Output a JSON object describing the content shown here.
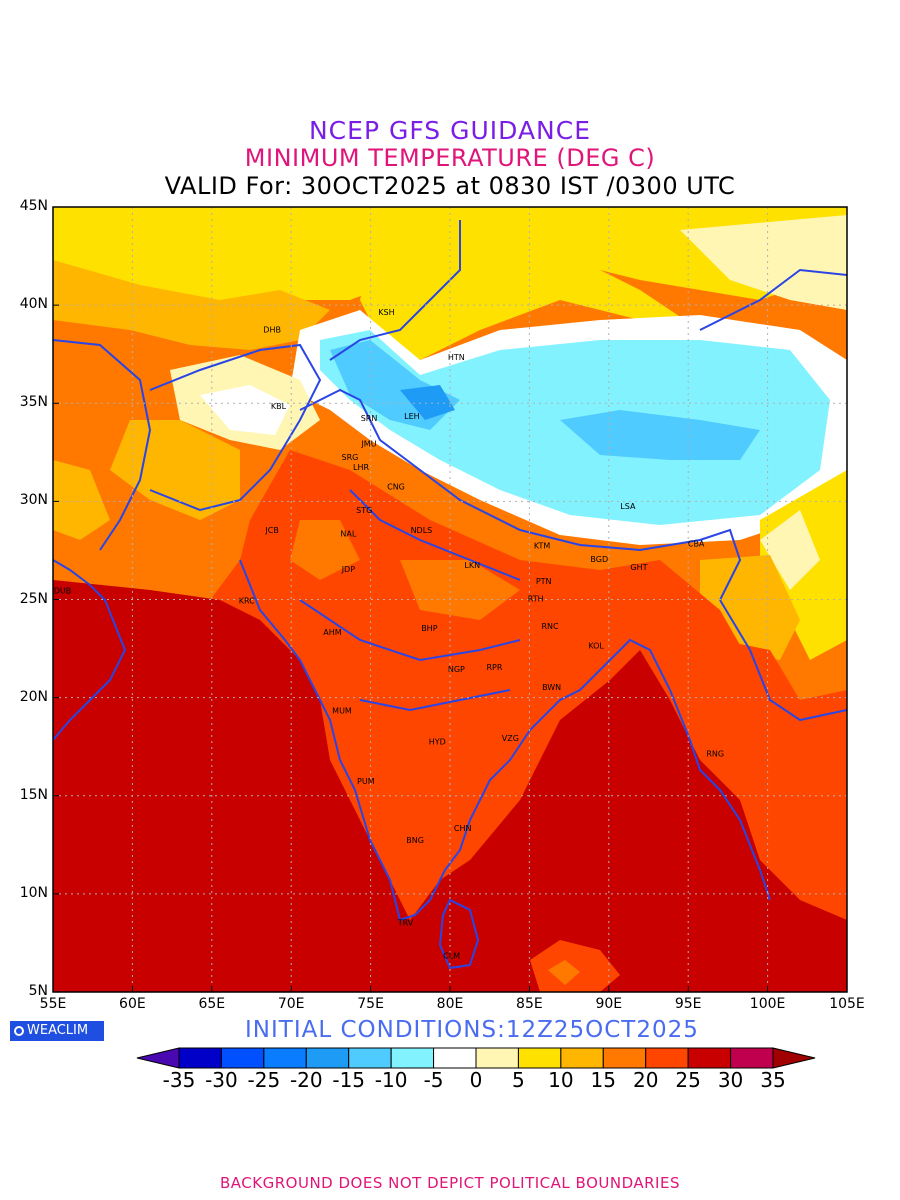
{
  "title": {
    "line1": "NCEP GFS GUIDANCE",
    "line2": "MINIMUM TEMPERATURE (DEG C)",
    "line3": "VALID For: 30OCT2025 at 0830 IST /0300 UTC"
  },
  "map": {
    "lat_labels": [
      "45N",
      "40N",
      "35N",
      "30N",
      "25N",
      "20N",
      "15N",
      "10N",
      "5N"
    ],
    "lon_labels": [
      "55E",
      "60E",
      "65E",
      "70E",
      "75E",
      "80E",
      "85E",
      "90E",
      "95E",
      "100E",
      "105E"
    ],
    "cities": [
      {
        "name": "KSH",
        "lon": 76.0,
        "lat": 39.5
      },
      {
        "name": "DHB",
        "lon": 68.8,
        "lat": 38.6
      },
      {
        "name": "HTN",
        "lon": 80.4,
        "lat": 37.2
      },
      {
        "name": "KBL",
        "lon": 69.2,
        "lat": 34.7
      },
      {
        "name": "SRN",
        "lon": 74.9,
        "lat": 34.1
      },
      {
        "name": "LEH",
        "lon": 77.6,
        "lat": 34.2
      },
      {
        "name": "JMU",
        "lon": 74.9,
        "lat": 32.8
      },
      {
        "name": "SRG",
        "lon": 73.7,
        "lat": 32.1
      },
      {
        "name": "LHR",
        "lon": 74.4,
        "lat": 31.6
      },
      {
        "name": "CNG",
        "lon": 76.6,
        "lat": 30.6
      },
      {
        "name": "STG",
        "lon": 74.6,
        "lat": 29.4
      },
      {
        "name": "LSA",
        "lon": 91.2,
        "lat": 29.6
      },
      {
        "name": "JCB",
        "lon": 68.8,
        "lat": 28.4
      },
      {
        "name": "NDLS",
        "lon": 78.2,
        "lat": 28.4
      },
      {
        "name": "NAL",
        "lon": 73.6,
        "lat": 28.2
      },
      {
        "name": "KTM",
        "lon": 85.8,
        "lat": 27.6
      },
      {
        "name": "CBA",
        "lon": 95.5,
        "lat": 27.7
      },
      {
        "name": "BGD",
        "lon": 89.4,
        "lat": 26.9
      },
      {
        "name": "LKN",
        "lon": 81.4,
        "lat": 26.6
      },
      {
        "name": "JDP",
        "lon": 73.6,
        "lat": 26.4
      },
      {
        "name": "GHT",
        "lon": 91.9,
        "lat": 26.5
      },
      {
        "name": "PTN",
        "lon": 85.9,
        "lat": 25.8
      },
      {
        "name": "DUB",
        "lon": 55.6,
        "lat": 25.3
      },
      {
        "name": "KRC",
        "lon": 67.2,
        "lat": 24.8
      },
      {
        "name": "RTH",
        "lon": 85.4,
        "lat": 24.9
      },
      {
        "name": "BHP",
        "lon": 78.7,
        "lat": 23.4
      },
      {
        "name": "RNC",
        "lon": 86.3,
        "lat": 23.5
      },
      {
        "name": "AHM",
        "lon": 72.6,
        "lat": 23.2
      },
      {
        "name": "KOL",
        "lon": 89.2,
        "lat": 22.5
      },
      {
        "name": "NGP",
        "lon": 80.4,
        "lat": 21.3
      },
      {
        "name": "RPR",
        "lon": 82.8,
        "lat": 21.4
      },
      {
        "name": "BWN",
        "lon": 86.4,
        "lat": 20.4
      },
      {
        "name": "MUM",
        "lon": 73.2,
        "lat": 19.2
      },
      {
        "name": "HYD",
        "lon": 79.2,
        "lat": 17.6
      },
      {
        "name": "VZG",
        "lon": 83.8,
        "lat": 17.8
      },
      {
        "name": "RNG",
        "lon": 96.7,
        "lat": 17.0
      },
      {
        "name": "PUM",
        "lon": 74.7,
        "lat": 15.6
      },
      {
        "name": "CHN",
        "lon": 80.8,
        "lat": 13.2
      },
      {
        "name": "BNG",
        "lon": 77.8,
        "lat": 12.6
      },
      {
        "name": "TRV",
        "lon": 77.2,
        "lat": 8.4
      },
      {
        "name": "CLM",
        "lon": 80.1,
        "lat": 6.7
      }
    ]
  },
  "colorbar": {
    "labels": [
      "-35",
      "-30",
      "-25",
      "-20",
      "-15",
      "-10",
      "-5",
      "0",
      "5",
      "10",
      "15",
      "20",
      "25",
      "30",
      "35"
    ],
    "colors": [
      "#4a08b0",
      "#0000c8",
      "#0050ff",
      "#0a7cff",
      "#1e9bf5",
      "#4fcbff",
      "#82f2ff",
      "#ffffff",
      "#fff6b4",
      "#ffe100",
      "#ffb600",
      "#ff7800",
      "#ff4600",
      "#c80000",
      "#c0004e",
      "#a00000"
    ]
  },
  "logo": "WEACLIM",
  "initial_conditions": "INITIAL CONDITIONS:12Z25OCT2025",
  "footer": "BACKGROUND DOES NOT DEPICT POLITICAL BOUNDARIES"
}
